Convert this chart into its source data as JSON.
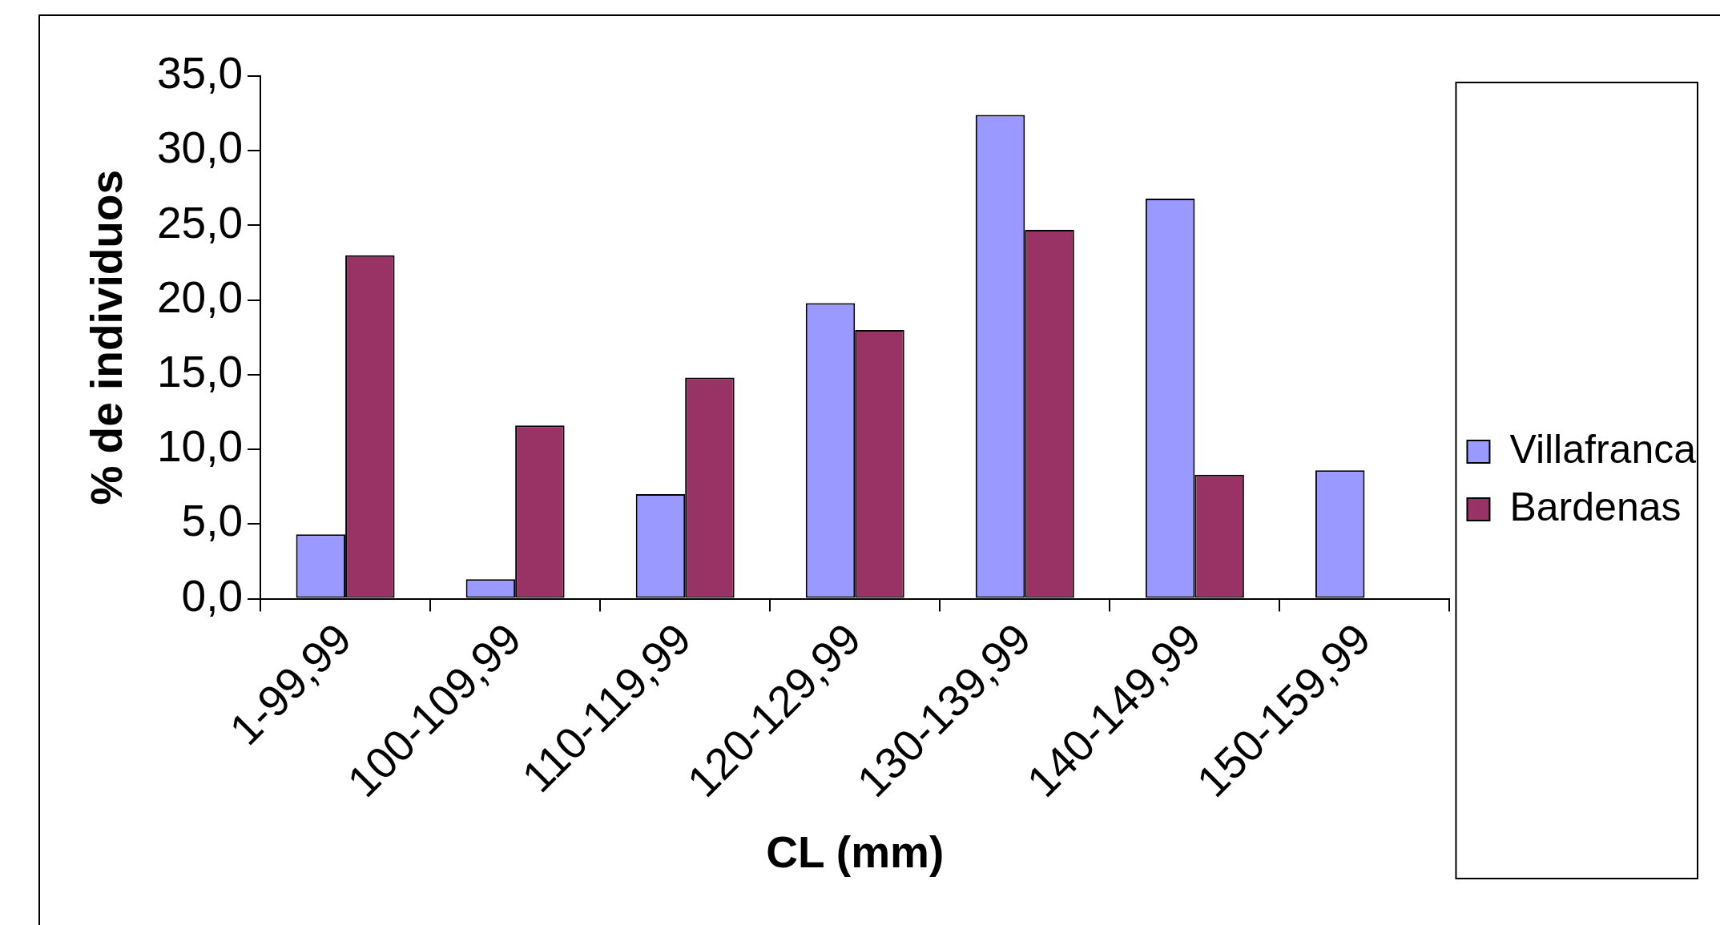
{
  "chart_data": {
    "type": "bar",
    "xlabel": "CL (mm)",
    "ylabel": "% de individuos",
    "categories": [
      "1-99,99",
      "100-109,99",
      "110-119,99",
      "120-129,99",
      "130-139,99",
      "140-149,99",
      "150-159,99"
    ],
    "series": [
      {
        "name": "Villafranca",
        "color": "#9999ff",
        "values": [
          4.3,
          1.3,
          7.0,
          19.8,
          32.4,
          26.8,
          8.6
        ]
      },
      {
        "name": "Bardenas",
        "color": "#993366",
        "values": [
          23.0,
          11.6,
          14.8,
          18.0,
          24.7,
          8.3,
          null
        ]
      }
    ],
    "ylim": [
      0,
      35
    ],
    "yticks": [
      {
        "value": 0,
        "label": "0,0"
      },
      {
        "value": 5,
        "label": "5,0"
      },
      {
        "value": 10,
        "label": "10,0"
      },
      {
        "value": 15,
        "label": "15,0"
      },
      {
        "value": 20,
        "label": "20,0"
      },
      {
        "value": 25,
        "label": "25,0"
      },
      {
        "value": 30,
        "label": "30,0"
      },
      {
        "value": 35,
        "label": "35,0"
      }
    ],
    "grid": false,
    "legend": "right"
  }
}
